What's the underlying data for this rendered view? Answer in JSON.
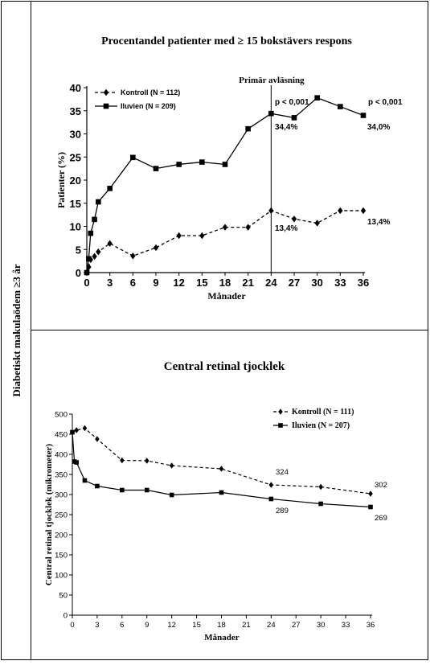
{
  "side_label": "Diabetiskt makulaödem ≥3 år",
  "chart_data": [
    {
      "type": "line",
      "title": "Procentandel patienter med ≥ 15 bokstävers respons",
      "xlabel": "Månader",
      "ylabel": "Patienter (%)",
      "xlim": [
        0,
        36
      ],
      "ylim": [
        0,
        40
      ],
      "x_ticks": [
        "0",
        "3",
        "6",
        "9",
        "12",
        "15",
        "18",
        "21",
        "24",
        "27",
        "30",
        "33",
        "36"
      ],
      "y_ticks": [
        "0",
        "5",
        "10",
        "15",
        "20",
        "25",
        "30",
        "35",
        "40"
      ],
      "legend_position": "top-left",
      "series": [
        {
          "name": "Kontroll (N = 112)",
          "marker": "diamond",
          "line_style": "dashed",
          "x": [
            0,
            0.25,
            0.5,
            1,
            1.5,
            3,
            6,
            9,
            12,
            15,
            18,
            21,
            24,
            27,
            30,
            33,
            36
          ],
          "y": [
            0,
            1.2,
            2.8,
            3.5,
            4.5,
            6.3,
            3.6,
            5.4,
            8.0,
            8.0,
            9.8,
            9.8,
            13.4,
            11.6,
            10.7,
            13.4,
            13.4
          ]
        },
        {
          "name": "Iluvien (N = 209)",
          "marker": "square",
          "line_style": "solid",
          "x": [
            0,
            0.25,
            0.5,
            1,
            1.5,
            3,
            6,
            9,
            12,
            15,
            18,
            21,
            24,
            27,
            30,
            33,
            36
          ],
          "y": [
            0,
            3.0,
            8.5,
            11.5,
            15.3,
            18.2,
            24.9,
            22.5,
            23.4,
            23.9,
            23.4,
            31.1,
            34.4,
            33.5,
            37.8,
            35.9,
            34.0
          ]
        }
      ],
      "vertical_line": {
        "x": 24,
        "label": "Primär avläsning"
      },
      "annotations": [
        {
          "text": "p < 0,001",
          "x": 24
        },
        {
          "text": "p < 0,001",
          "x": 36
        },
        {
          "text": "34,4%",
          "x": 24
        },
        {
          "text": "34,0%",
          "x": 36
        },
        {
          "text": "13,4%",
          "x": 24
        },
        {
          "text": "13,4%",
          "x": 36
        }
      ]
    },
    {
      "type": "line",
      "title": "Central retinal tjocklek",
      "xlabel": "Månader",
      "ylabel": "Central retinal tjocklek (mikrometer)",
      "xlim": [
        0,
        36
      ],
      "ylim": [
        0,
        500
      ],
      "x_ticks": [
        "0",
        "3",
        "6",
        "9",
        "12",
        "15",
        "18",
        "21",
        "24",
        "27",
        "30",
        "33",
        "36"
      ],
      "y_ticks": [
        "0",
        "50",
        "100",
        "150",
        "200",
        "250",
        "300",
        "350",
        "400",
        "450",
        "500"
      ],
      "legend_position": "top-right",
      "series": [
        {
          "name": "Kontroll (N = 111)",
          "marker": "diamond",
          "line_style": "dashed",
          "x": [
            0,
            0.5,
            1.5,
            3,
            6,
            9,
            12,
            18,
            24,
            30,
            36
          ],
          "y": [
            455,
            460,
            465,
            438,
            385,
            384,
            372,
            364,
            324,
            319,
            302
          ]
        },
        {
          "name": "Iluvien (N = 207)",
          "marker": "square",
          "line_style": "solid",
          "x": [
            0,
            0.25,
            0.5,
            1.5,
            3,
            6,
            9,
            12,
            18,
            24,
            30,
            36
          ],
          "y": [
            455,
            382,
            380,
            335,
            321,
            311,
            311,
            299,
            305,
            289,
            277,
            269
          ]
        }
      ],
      "annotations": [
        {
          "text": "324",
          "x": 24
        },
        {
          "text": "302",
          "x": 36
        },
        {
          "text": "289",
          "x": 24
        },
        {
          "text": "269",
          "x": 36
        }
      ]
    }
  ]
}
